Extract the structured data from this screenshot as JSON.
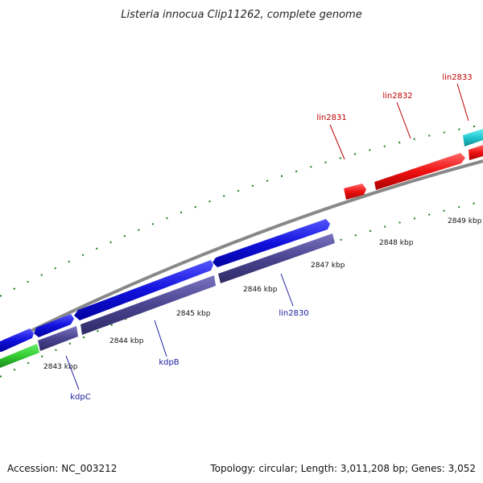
{
  "title": "Listeria innocua Clip11262, complete genome",
  "footer": {
    "accession": "Accession: NC_003212",
    "summary": "Topology: circular; Length: 3,011,208 bp; Genes: 3,052"
  },
  "kbp_labels": [
    "2843 kbp",
    "2844 kbp",
    "2845 kbp",
    "2846 kbp",
    "2847 kbp",
    "2848 kbp",
    "2849 kbp"
  ],
  "gene_labels": [
    {
      "text": "kdpC",
      "color": "#1a1aa0"
    },
    {
      "text": "kdpB",
      "color": "#1a1aa0"
    },
    {
      "text": "lin2830",
      "color": "#1a1aa0"
    },
    {
      "text": "lin2831",
      "color": "#c00000"
    },
    {
      "text": "lin2832",
      "color": "#c00000"
    },
    {
      "text": "lin2833",
      "color": "#c00000"
    }
  ],
  "colors": {
    "forward_red": "#ee1111",
    "forward_cyan": "#22c8d0",
    "reverse_blue": "#1111dd",
    "reverse_slate": "#4a4490",
    "green": "#33cc33",
    "backbone": "#888888",
    "tick": "#1a7a1a"
  }
}
